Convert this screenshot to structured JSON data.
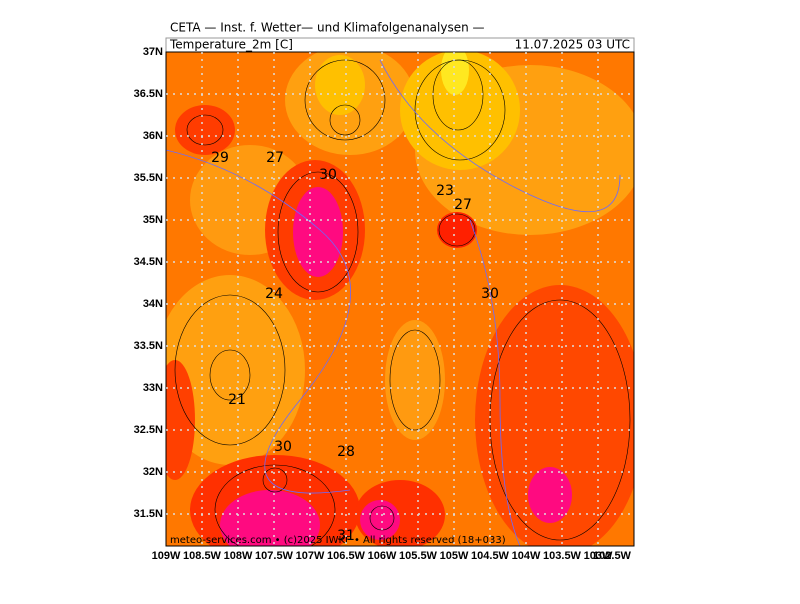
{
  "header": {
    "title": "CETA — Inst. f. Wetter— und Klimafolgenanalysen —",
    "field": "Temperature_2m [C]",
    "time": "11.07.2025 03 UTC"
  },
  "lat_labels": [
    "37N",
    "36.5N",
    "36N",
    "35.5N",
    "35N",
    "34.5N",
    "34N",
    "33.5N",
    "33N",
    "32.5N",
    "32N",
    "31.5N"
  ],
  "lon_labels": [
    "109W",
    "108.5W",
    "108W",
    "107.5W",
    "107W",
    "106.5W",
    "106W",
    "105.5W",
    "105W",
    "104.5W",
    "104W",
    "103.5W",
    "103W",
    "102.5W"
  ],
  "contour_labels": [
    "29",
    "27",
    "30",
    "23",
    "27",
    "24",
    "30",
    "21",
    "30",
    "28",
    "31"
  ],
  "footer": "meteo-services.com • (c)2025 IWKF • All rights reserved (18+033)"
}
